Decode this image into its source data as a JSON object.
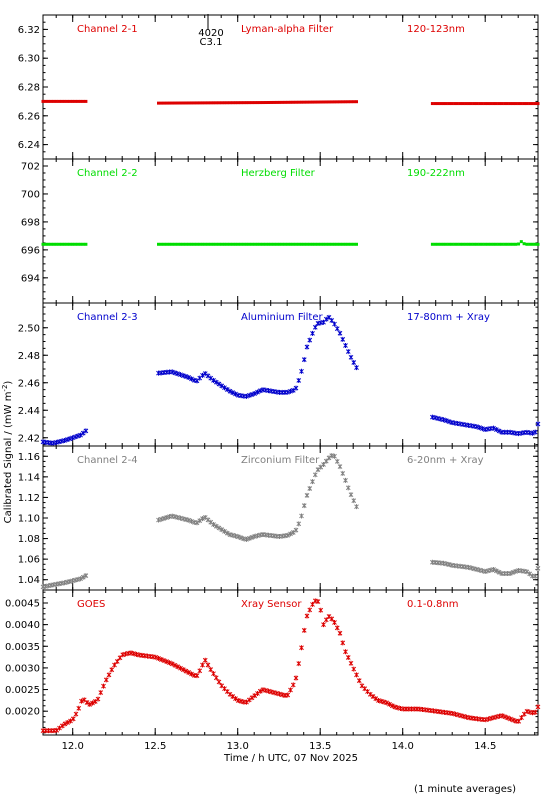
{
  "chart_data": {
    "type": "scatter",
    "xaxis": {
      "label": "Time / h UTC, 07 Nov 2025",
      "range": [
        11.82,
        14.82
      ],
      "ticks": [
        "12.0",
        "12.5",
        "13.0",
        "13.5",
        "14.0",
        "14.5"
      ],
      "tick_values": [
        12.0,
        12.5,
        13.0,
        13.5,
        14.0,
        14.5
      ]
    },
    "ylabel": "Calibrated Signal / (mW m",
    "ylabel_sup": "-2",
    "ylabel_close": ")",
    "footnote": "(1 minute averages)",
    "flare_marker": {
      "x": 12.82,
      "label1": "4020",
      "label2": "C3.1"
    },
    "panels": [
      {
        "channel": "Channel 2-1",
        "filter": "Lyman-alpha Filter",
        "band": "120-123nm",
        "color": "#dd0000",
        "ylim": [
          6.23,
          6.33
        ],
        "yticks": [
          "6.24",
          "6.26",
          "6.28",
          "6.30",
          "6.32"
        ],
        "ytick_values": [
          6.24,
          6.26,
          6.28,
          6.3,
          6.32
        ],
        "segments": [
          {
            "x": [
              11.82,
              12.08
            ],
            "y": [
              6.27,
              6.27
            ]
          },
          {
            "x": [
              12.52,
              13.15,
              13.72
            ],
            "y": [
              6.2688,
              6.2692,
              6.2698
            ]
          },
          {
            "x": [
              14.18,
              14.82
            ],
            "y": [
              6.2685,
              6.2685
            ]
          }
        ]
      },
      {
        "channel": "Channel 2-2",
        "filter": "Herzberg Filter",
        "band": "190-222nm",
        "color": "#00dd00",
        "ylim": [
          692.2,
          702.5
        ],
        "yticks": [
          "694",
          "696",
          "698",
          "700",
          "702"
        ],
        "ytick_values": [
          694,
          696,
          698,
          700,
          702
        ],
        "segments": [
          {
            "x": [
              11.82,
              12.08
            ],
            "y": [
              696.4,
              696.4
            ]
          },
          {
            "x": [
              12.52,
              13.72
            ],
            "y": [
              696.4,
              696.4
            ]
          },
          {
            "x": [
              14.18,
              14.7,
              14.72,
              14.74,
              14.82
            ],
            "y": [
              696.4,
              696.4,
              696.6,
              696.4,
              696.4
            ]
          }
        ]
      },
      {
        "channel": "Channel 2-3",
        "filter": "Aluminium Filter",
        "band": "17-80nm + Xray",
        "color": "#0000cc",
        "ylim": [
          2.414,
          2.518
        ],
        "yticks": [
          "2.42",
          "2.44",
          "2.46",
          "2.48",
          "2.50"
        ],
        "ytick_values": [
          2.42,
          2.44,
          2.46,
          2.48,
          2.5
        ],
        "segments": [
          {
            "x": [
              11.82,
              11.88,
              11.95,
              12.0,
              12.05,
              12.08
            ],
            "y": [
              2.417,
              2.416,
              2.418,
              2.42,
              2.422,
              2.425
            ]
          },
          {
            "x": [
              12.52,
              12.6,
              12.7,
              12.75,
              12.8,
              12.85,
              12.9,
              12.95,
              13.0,
              13.05,
              13.1,
              13.15,
              13.2,
              13.25,
              13.3,
              13.35,
              13.38,
              13.4,
              13.42,
              13.45,
              13.48,
              13.52,
              13.55,
              13.58,
              13.62,
              13.65,
              13.68,
              13.72
            ],
            "y": [
              2.467,
              2.468,
              2.464,
              2.461,
              2.467,
              2.462,
              2.458,
              2.454,
              2.451,
              2.45,
              2.452,
              2.455,
              2.454,
              2.453,
              2.453,
              2.455,
              2.465,
              2.475,
              2.486,
              2.495,
              2.503,
              2.504,
              2.508,
              2.504,
              2.496,
              2.488,
              2.48,
              2.471
            ]
          },
          {
            "x": [
              14.18,
              14.25,
              14.3,
              14.35,
              14.4,
              14.45,
              14.5,
              14.55,
              14.6,
              14.65,
              14.7,
              14.75,
              14.8,
              14.82
            ],
            "y": [
              2.435,
              2.433,
              2.431,
              2.43,
              2.429,
              2.428,
              2.426,
              2.427,
              2.424,
              2.424,
              2.423,
              2.424,
              2.423,
              2.43
            ]
          }
        ]
      },
      {
        "channel": "Channel 2-4",
        "filter": "Zirconium Filter",
        "band": "6-20nm + Xray",
        "color": "#808080",
        "ylim": [
          1.03,
          1.17
        ],
        "yticks": [
          "1.04",
          "1.06",
          "1.08",
          "1.10",
          "1.12",
          "1.14",
          "1.16"
        ],
        "ytick_values": [
          1.04,
          1.06,
          1.08,
          1.1,
          1.12,
          1.14,
          1.16
        ],
        "segments": [
          {
            "x": [
              11.82,
              11.88,
              11.95,
              12.0,
              12.05,
              12.08
            ],
            "y": [
              1.033,
              1.035,
              1.037,
              1.039,
              1.041,
              1.044
            ]
          },
          {
            "x": [
              12.52,
              12.6,
              12.7,
              12.75,
              12.8,
              12.85,
              12.9,
              12.95,
              13.0,
              13.05,
              13.1,
              13.15,
              13.2,
              13.25,
              13.3,
              13.35,
              13.38,
              13.4,
              13.42,
              13.45,
              13.48,
              13.52,
              13.55,
              13.58,
              13.62,
              13.65,
              13.68,
              13.72
            ],
            "y": [
              1.098,
              1.102,
              1.098,
              1.095,
              1.101,
              1.094,
              1.089,
              1.084,
              1.082,
              1.079,
              1.082,
              1.084,
              1.083,
              1.082,
              1.083,
              1.087,
              1.098,
              1.11,
              1.122,
              1.134,
              1.146,
              1.152,
              1.158,
              1.162,
              1.15,
              1.138,
              1.125,
              1.111
            ]
          },
          {
            "x": [
              14.18,
              14.25,
              14.3,
              14.35,
              14.4,
              14.45,
              14.5,
              14.55,
              14.6,
              14.65,
              14.7,
              14.75,
              14.8,
              14.82
            ],
            "y": [
              1.057,
              1.056,
              1.054,
              1.053,
              1.052,
              1.05,
              1.048,
              1.05,
              1.046,
              1.046,
              1.049,
              1.048,
              1.042,
              1.051
            ]
          }
        ]
      },
      {
        "channel": "GOES",
        "filter": "Xray Sensor",
        "band": "0.1-0.8nm",
        "color": "#dd0000",
        "ylim": [
          0.00145,
          0.0048
        ],
        "yticks": [
          "0.0020",
          "0.0025",
          "0.0030",
          "0.0035",
          "0.0040",
          "0.0045"
        ],
        "ytick_values": [
          0.002,
          0.0025,
          0.003,
          0.0035,
          0.004,
          0.0045
        ],
        "segments": [
          {
            "x": [
              11.82,
              11.9,
              11.95,
              12.0,
              12.03,
              12.06,
              12.1,
              12.15,
              12.2,
              12.25,
              12.3,
              12.35,
              12.4,
              12.5,
              12.6,
              12.7,
              12.75,
              12.78,
              12.8,
              12.83,
              12.9,
              12.95,
              13.0,
              13.05,
              13.1,
              13.15,
              13.2,
              13.25,
              13.3,
              13.35,
              13.38,
              13.4,
              13.42,
              13.45,
              13.48,
              13.5,
              13.52,
              13.55,
              13.58,
              13.62,
              13.65,
              13.7,
              13.75,
              13.8,
              13.85,
              13.9,
              13.95,
              14.0,
              14.1,
              14.2,
              14.3,
              14.4,
              14.5,
              14.6,
              14.7,
              14.75,
              14.8,
              14.82
            ],
            "y": [
              0.00155,
              0.00155,
              0.0017,
              0.0018,
              0.002,
              0.0023,
              0.00215,
              0.00225,
              0.0027,
              0.00305,
              0.0033,
              0.00335,
              0.0033,
              0.00325,
              0.0031,
              0.0029,
              0.0028,
              0.003,
              0.0032,
              0.003,
              0.0026,
              0.0024,
              0.00225,
              0.0022,
              0.00235,
              0.0025,
              0.00245,
              0.0024,
              0.00235,
              0.0027,
              0.0033,
              0.0038,
              0.0042,
              0.00445,
              0.0046,
              0.0044,
              0.004,
              0.0042,
              0.0041,
              0.0038,
              0.0034,
              0.003,
              0.0026,
              0.0024,
              0.00225,
              0.0022,
              0.0021,
              0.00205,
              0.00205,
              0.002,
              0.00195,
              0.00185,
              0.0018,
              0.0019,
              0.00175,
              0.002,
              0.00195,
              0.0021
            ]
          }
        ]
      }
    ]
  }
}
